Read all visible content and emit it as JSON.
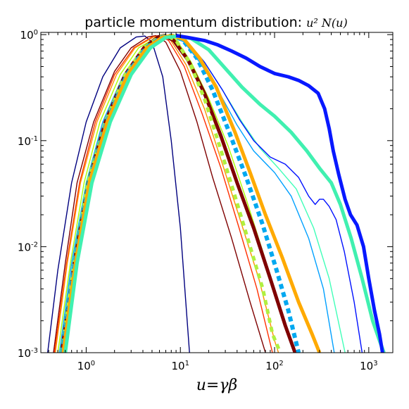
{
  "chart_data": {
    "type": "line",
    "title": "particle momentum distribution: ",
    "title_math": "u² N(u)",
    "xlabel": "u=γβ",
    "ylabel": "",
    "xscale": "log",
    "yscale": "log",
    "xlim": [
      0.33,
      1800
    ],
    "ylim": [
      0.001,
      1.05
    ],
    "grid": false,
    "legend": "none",
    "x_ticks": [
      {
        "value": 1,
        "base": "10",
        "exp": "0"
      },
      {
        "value": 10,
        "base": "10",
        "exp": "1"
      },
      {
        "value": 100,
        "base": "10",
        "exp": "2"
      },
      {
        "value": 1000,
        "base": "10",
        "exp": "3"
      }
    ],
    "y_ticks": [
      {
        "value": 0.001,
        "base": "10",
        "exp": "-3"
      },
      {
        "value": 0.01,
        "base": "10",
        "exp": "-2"
      },
      {
        "value": 0.1,
        "base": "10",
        "exp": "-1"
      },
      {
        "value": 1,
        "base": "10",
        "exp": "0"
      }
    ],
    "series": [
      {
        "color": "#00007f",
        "width": 1.4,
        "dash": "",
        "points": [
          [
            0.39,
            0.001
          ],
          [
            0.5,
            0.006
          ],
          [
            0.7,
            0.04
          ],
          [
            1.0,
            0.15
          ],
          [
            1.5,
            0.4
          ],
          [
            2.3,
            0.75
          ],
          [
            3.4,
            0.95
          ],
          [
            4.2,
            0.97
          ],
          [
            5.0,
            0.85
          ],
          [
            6.5,
            0.4
          ],
          [
            8.0,
            0.1
          ],
          [
            10,
            0.015
          ],
          [
            12.5,
            0.001
          ]
        ]
      },
      {
        "color": "#7f0000",
        "width": 1.4,
        "dash": "",
        "points": [
          [
            0.45,
            0.001
          ],
          [
            0.6,
            0.007
          ],
          [
            0.8,
            0.04
          ],
          [
            1.2,
            0.15
          ],
          [
            2.0,
            0.45
          ],
          [
            3.0,
            0.75
          ],
          [
            4.5,
            0.95
          ],
          [
            5.5,
            0.98
          ],
          [
            7.0,
            0.85
          ],
          [
            10,
            0.45
          ],
          [
            15,
            0.15
          ],
          [
            22,
            0.045
          ],
          [
            35,
            0.012
          ],
          [
            55,
            0.003
          ],
          [
            80,
            0.001
          ]
        ]
      },
      {
        "color": "#ff3000",
        "width": 1.4,
        "dash": "",
        "points": [
          [
            0.46,
            0.001
          ],
          [
            0.62,
            0.007
          ],
          [
            0.85,
            0.04
          ],
          [
            1.25,
            0.15
          ],
          [
            2.0,
            0.42
          ],
          [
            3.2,
            0.75
          ],
          [
            5.0,
            0.95
          ],
          [
            6.0,
            0.98
          ],
          [
            7.5,
            0.88
          ],
          [
            11,
            0.5
          ],
          [
            17,
            0.18
          ],
          [
            27,
            0.055
          ],
          [
            42,
            0.015
          ],
          [
            65,
            0.004
          ],
          [
            95,
            0.001
          ]
        ]
      },
      {
        "color": "#ff9000",
        "width": 1.4,
        "dash": "",
        "points": [
          [
            0.47,
            0.001
          ],
          [
            0.63,
            0.007
          ],
          [
            0.87,
            0.04
          ],
          [
            1.3,
            0.15
          ],
          [
            2.1,
            0.42
          ],
          [
            3.3,
            0.75
          ],
          [
            5.2,
            0.95
          ],
          [
            6.2,
            0.98
          ],
          [
            7.8,
            0.9
          ],
          [
            11.5,
            0.52
          ],
          [
            18,
            0.2
          ],
          [
            28,
            0.06
          ],
          [
            44,
            0.017
          ],
          [
            68,
            0.005
          ],
          [
            100,
            0.0013
          ],
          [
            110,
            0.001
          ]
        ]
      },
      {
        "color": "#aaff00",
        "width": 1.4,
        "dash": "",
        "points": [
          [
            0.5,
            0.001
          ],
          [
            0.68,
            0.007
          ],
          [
            0.95,
            0.04
          ],
          [
            1.4,
            0.15
          ],
          [
            2.3,
            0.42
          ],
          [
            3.6,
            0.75
          ],
          [
            5.5,
            0.93
          ],
          [
            7.0,
            0.98
          ],
          [
            9.0,
            0.9
          ],
          [
            13,
            0.55
          ],
          [
            20,
            0.25
          ],
          [
            32,
            0.09
          ],
          [
            50,
            0.028
          ],
          [
            75,
            0.009
          ],
          [
            110,
            0.003
          ],
          [
            160,
            0.001
          ]
        ]
      },
      {
        "color": "#00a0ff",
        "width": 1.4,
        "dash": "",
        "points": [
          [
            0.52,
            0.001
          ],
          [
            0.7,
            0.007
          ],
          [
            1.0,
            0.04
          ],
          [
            1.5,
            0.15
          ],
          [
            2.5,
            0.42
          ],
          [
            4.0,
            0.75
          ],
          [
            6.0,
            0.93
          ],
          [
            8.0,
            0.98
          ],
          [
            11,
            0.85
          ],
          [
            16,
            0.55
          ],
          [
            25,
            0.3
          ],
          [
            40,
            0.14
          ],
          [
            60,
            0.08
          ],
          [
            100,
            0.05
          ],
          [
            150,
            0.03
          ],
          [
            230,
            0.012
          ],
          [
            330,
            0.004
          ],
          [
            430,
            0.001
          ]
        ]
      },
      {
        "color": "#40ffb8",
        "width": 1.4,
        "dash": "",
        "points": [
          [
            0.53,
            0.001
          ],
          [
            0.72,
            0.007
          ],
          [
            1.0,
            0.04
          ],
          [
            1.55,
            0.15
          ],
          [
            2.6,
            0.42
          ],
          [
            4.2,
            0.75
          ],
          [
            6.5,
            0.93
          ],
          [
            8.5,
            0.98
          ],
          [
            12,
            0.85
          ],
          [
            18,
            0.55
          ],
          [
            28,
            0.3
          ],
          [
            45,
            0.15
          ],
          [
            70,
            0.085
          ],
          [
            110,
            0.055
          ],
          [
            170,
            0.035
          ],
          [
            260,
            0.015
          ],
          [
            380,
            0.005
          ],
          [
            560,
            0.001
          ]
        ]
      },
      {
        "color": "#0010ff",
        "width": 1.4,
        "dash": "",
        "points": [
          [
            0.54,
            0.001
          ],
          [
            0.73,
            0.007
          ],
          [
            1.05,
            0.04
          ],
          [
            1.6,
            0.15
          ],
          [
            2.7,
            0.42
          ],
          [
            4.3,
            0.75
          ],
          [
            6.5,
            0.93
          ],
          [
            8.5,
            0.98
          ],
          [
            12,
            0.85
          ],
          [
            18,
            0.55
          ],
          [
            28,
            0.3
          ],
          [
            42,
            0.16
          ],
          [
            60,
            0.1
          ],
          [
            90,
            0.07
          ],
          [
            130,
            0.06
          ],
          [
            180,
            0.045
          ],
          [
            230,
            0.03
          ],
          [
            270,
            0.025
          ],
          [
            300,
            0.028
          ],
          [
            330,
            0.028
          ],
          [
            380,
            0.024
          ],
          [
            450,
            0.018
          ],
          [
            550,
            0.009
          ],
          [
            700,
            0.003
          ],
          [
            850,
            0.001
          ]
        ]
      },
      {
        "color": "#7f0000",
        "width": 5,
        "dash": "",
        "points": [
          [
            0.55,
            0.001
          ],
          [
            0.75,
            0.007
          ],
          [
            1.05,
            0.04
          ],
          [
            1.6,
            0.15
          ],
          [
            2.6,
            0.42
          ],
          [
            4.1,
            0.75
          ],
          [
            5.8,
            0.95
          ],
          [
            6.8,
            0.98
          ],
          [
            8.5,
            0.88
          ],
          [
            12,
            0.58
          ],
          [
            18,
            0.28
          ],
          [
            27,
            0.11
          ],
          [
            40,
            0.04
          ],
          [
            60,
            0.015
          ],
          [
            90,
            0.005
          ],
          [
            130,
            0.0018
          ],
          [
            165,
            0.001
          ]
        ]
      },
      {
        "color": "#b0f040",
        "width": 5,
        "dash": "7,6",
        "points": [
          [
            0.55,
            0.001
          ],
          [
            0.75,
            0.007
          ],
          [
            1.05,
            0.04
          ],
          [
            1.6,
            0.15
          ],
          [
            2.6,
            0.42
          ],
          [
            4.1,
            0.75
          ],
          [
            6.0,
            0.95
          ],
          [
            7.2,
            0.98
          ],
          [
            9.0,
            0.88
          ],
          [
            12.5,
            0.55
          ],
          [
            18,
            0.25
          ],
          [
            26,
            0.09
          ],
          [
            38,
            0.03
          ],
          [
            55,
            0.01
          ],
          [
            75,
            0.004
          ],
          [
            95,
            0.0015
          ],
          [
            115,
            0.001
          ]
        ]
      },
      {
        "color": "#00a8f0",
        "width": 6,
        "dash": "7,5",
        "points": [
          [
            0.56,
            0.001
          ],
          [
            0.76,
            0.007
          ],
          [
            1.07,
            0.04
          ],
          [
            1.65,
            0.15
          ],
          [
            2.7,
            0.42
          ],
          [
            4.3,
            0.75
          ],
          [
            6.3,
            0.94
          ],
          [
            8.0,
            0.98
          ],
          [
            10.5,
            0.9
          ],
          [
            15,
            0.6
          ],
          [
            22,
            0.3
          ],
          [
            33,
            0.12
          ],
          [
            50,
            0.045
          ],
          [
            75,
            0.016
          ],
          [
            105,
            0.006
          ],
          [
            140,
            0.0025
          ],
          [
            180,
            0.001
          ]
        ]
      },
      {
        "color": "#ffaa00",
        "width": 5,
        "dash": "",
        "points": [
          [
            0.57,
            0.001
          ],
          [
            0.77,
            0.007
          ],
          [
            1.08,
            0.04
          ],
          [
            1.67,
            0.15
          ],
          [
            2.75,
            0.42
          ],
          [
            4.4,
            0.75
          ],
          [
            6.4,
            0.94
          ],
          [
            8.2,
            0.98
          ],
          [
            11,
            0.9
          ],
          [
            16,
            0.6
          ],
          [
            24,
            0.32
          ],
          [
            38,
            0.12
          ],
          [
            55,
            0.05
          ],
          [
            80,
            0.02
          ],
          [
            120,
            0.008
          ],
          [
            180,
            0.003
          ],
          [
            250,
            0.0015
          ],
          [
            300,
            0.001
          ]
        ]
      },
      {
        "color": "#40f0b0",
        "width": 5,
        "dash": "",
        "points": [
          [
            0.6,
            0.001
          ],
          [
            0.8,
            0.007
          ],
          [
            1.15,
            0.04
          ],
          [
            1.8,
            0.15
          ],
          [
            3.0,
            0.42
          ],
          [
            4.8,
            0.75
          ],
          [
            7.0,
            0.94
          ],
          [
            9.5,
            0.97
          ],
          [
            13,
            0.92
          ],
          [
            20,
            0.72
          ],
          [
            30,
            0.48
          ],
          [
            45,
            0.32
          ],
          [
            70,
            0.22
          ],
          [
            100,
            0.17
          ],
          [
            150,
            0.12
          ],
          [
            220,
            0.08
          ],
          [
            300,
            0.055
          ],
          [
            400,
            0.04
          ],
          [
            500,
            0.025
          ],
          [
            650,
            0.012
          ],
          [
            850,
            0.005
          ],
          [
            1100,
            0.002
          ],
          [
            1300,
            0.0013
          ],
          [
            1450,
            0.001
          ]
        ]
      },
      {
        "color": "#0818ff",
        "width": 5,
        "dash": "",
        "points": [
          [
            9.0,
            0.98
          ],
          [
            12,
            0.94
          ],
          [
            18,
            0.88
          ],
          [
            25,
            0.8
          ],
          [
            35,
            0.7
          ],
          [
            50,
            0.6
          ],
          [
            70,
            0.5
          ],
          [
            100,
            0.43
          ],
          [
            140,
            0.4
          ],
          [
            180,
            0.37
          ],
          [
            230,
            0.33
          ],
          [
            290,
            0.28
          ],
          [
            340,
            0.2
          ],
          [
            380,
            0.13
          ],
          [
            420,
            0.08
          ],
          [
            480,
            0.048
          ],
          [
            560,
            0.028
          ],
          [
            640,
            0.02
          ],
          [
            750,
            0.016
          ],
          [
            880,
            0.01
          ],
          [
            1000,
            0.005
          ],
          [
            1150,
            0.0025
          ],
          [
            1300,
            0.0015
          ],
          [
            1400,
            0.001
          ]
        ]
      }
    ]
  }
}
